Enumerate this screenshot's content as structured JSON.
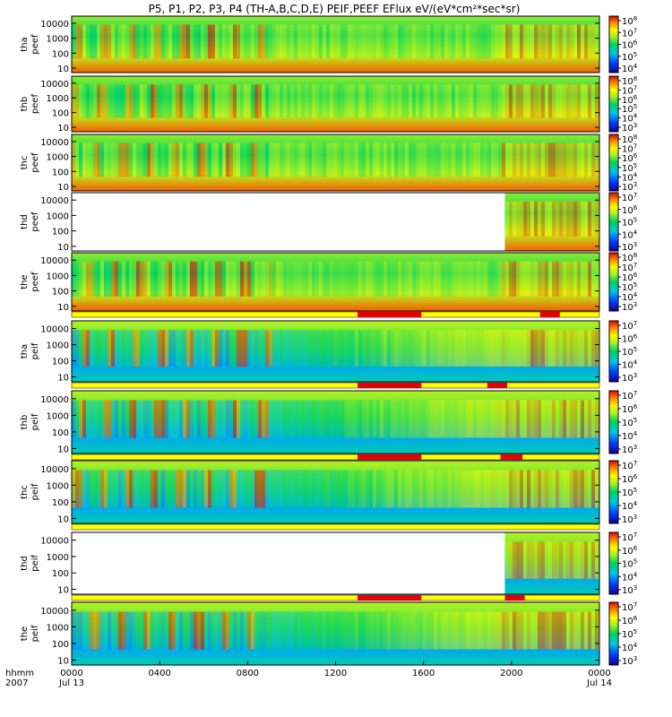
{
  "title": "P5, P1, P2, P3, P4 (TH-A,B,C,D,E) PEIF,PEEF EFlux eV/(eV*cm²*sec*sr)",
  "chart_data": {
    "type": "heatmap",
    "title": "P5, P1, P2, P3, P4 (TH-A,B,C,D,E) PEIF,PEEF EFlux eV/(eV*cm²*sec*sr)",
    "x_axis": {
      "label_rows": [
        "hhmm",
        "2007"
      ],
      "ticks": [
        {
          "hour": 0,
          "label": "0000",
          "sublabel": "Jul 13"
        },
        {
          "hour": 4,
          "label": "0400",
          "sublabel": ""
        },
        {
          "hour": 8,
          "label": "0800",
          "sublabel": ""
        },
        {
          "hour": 12,
          "label": "1200",
          "sublabel": ""
        },
        {
          "hour": 16,
          "label": "1600",
          "sublabel": ""
        },
        {
          "hour": 20,
          "label": "2000",
          "sublabel": ""
        },
        {
          "hour": 24,
          "label": "0000",
          "sublabel": "Jul 14"
        }
      ],
      "range_hours": [
        0,
        24
      ]
    },
    "y_scale": "log",
    "y_range_eV": [
      5,
      30000
    ],
    "y_ticks": [
      "10000",
      "1000",
      "100",
      "10"
    ],
    "color_scale": "rainbow (blue = low, red = high)",
    "panels": [
      {
        "probe": "tha",
        "product": "peef",
        "cbar_ticks": [
          "8",
          "7",
          "6",
          "5",
          "4"
        ],
        "data_gaps": [],
        "fill_ranges_hours": [
          [
            0,
            24
          ]
        ]
      },
      {
        "probe": "thb",
        "product": "peef",
        "cbar_ticks": [
          "8",
          "7",
          "6",
          "5",
          "4",
          "3"
        ],
        "data_gaps": [],
        "fill_ranges_hours": [
          [
            0,
            24
          ]
        ]
      },
      {
        "probe": "thc",
        "product": "peef",
        "cbar_ticks": [
          "8",
          "7",
          "6",
          "5",
          "4",
          "3"
        ],
        "data_gaps": [],
        "fill_ranges_hours": [
          [
            0,
            24
          ]
        ]
      },
      {
        "probe": "thd",
        "product": "peef",
        "cbar_ticks": [
          "7",
          "6",
          "5",
          "4",
          "3"
        ],
        "data_gaps": [
          [
            0,
            19.7
          ]
        ],
        "fill_ranges_hours": [
          [
            19.7,
            24
          ]
        ]
      },
      {
        "probe": "the",
        "product": "peef",
        "cbar_ticks": [
          "8",
          "7",
          "6",
          "5",
          "4",
          "3"
        ],
        "data_gaps": [],
        "fill_ranges_hours": [
          [
            0,
            24
          ]
        ]
      },
      {
        "probe": "tha",
        "product": "peif",
        "cbar_ticks": [
          "7",
          "6",
          "5",
          "4",
          "3"
        ],
        "data_gaps": [],
        "fill_ranges_hours": [
          [
            0,
            24
          ]
        ]
      },
      {
        "probe": "thb",
        "product": "peif",
        "cbar_ticks": [
          "7",
          "6",
          "5",
          "4",
          "3"
        ],
        "data_gaps": [],
        "fill_ranges_hours": [
          [
            0,
            24
          ]
        ]
      },
      {
        "probe": "thc",
        "product": "peif",
        "cbar_ticks": [
          "7",
          "6",
          "5",
          "4",
          "3"
        ],
        "data_gaps": [],
        "fill_ranges_hours": [
          [
            0,
            24
          ]
        ]
      },
      {
        "probe": "thd",
        "product": "peif",
        "cbar_ticks": [
          "7",
          "6",
          "5",
          "4",
          "3"
        ],
        "data_gaps": [
          [
            0,
            19.7
          ]
        ],
        "fill_ranges_hours": [
          [
            19.7,
            24
          ]
        ]
      },
      {
        "probe": "the",
        "product": "peif",
        "cbar_ticks": [
          "7",
          "6",
          "5",
          "4",
          "3"
        ],
        "data_gaps": [],
        "fill_ranges_hours": [
          [
            0,
            24
          ]
        ]
      }
    ],
    "mode_bars": [
      {
        "above_panel": 6,
        "red_segments_hours": [
          [
            13.0,
            15.9
          ],
          [
            21.3,
            22.2
          ]
        ]
      },
      {
        "above_panel": 7,
        "red_segments_hours": [
          [
            13.0,
            15.9
          ],
          [
            18.9,
            19.8
          ]
        ]
      },
      {
        "above_panel": 8,
        "red_segments_hours": [
          [
            13.0,
            15.9
          ],
          [
            19.5,
            20.5
          ]
        ]
      },
      {
        "above_panel": 9,
        "red_segments_hours": []
      },
      {
        "above_panel": 10,
        "red_segments_hours": [
          [
            13.0,
            15.9
          ],
          [
            19.7,
            20.6
          ]
        ]
      }
    ]
  }
}
